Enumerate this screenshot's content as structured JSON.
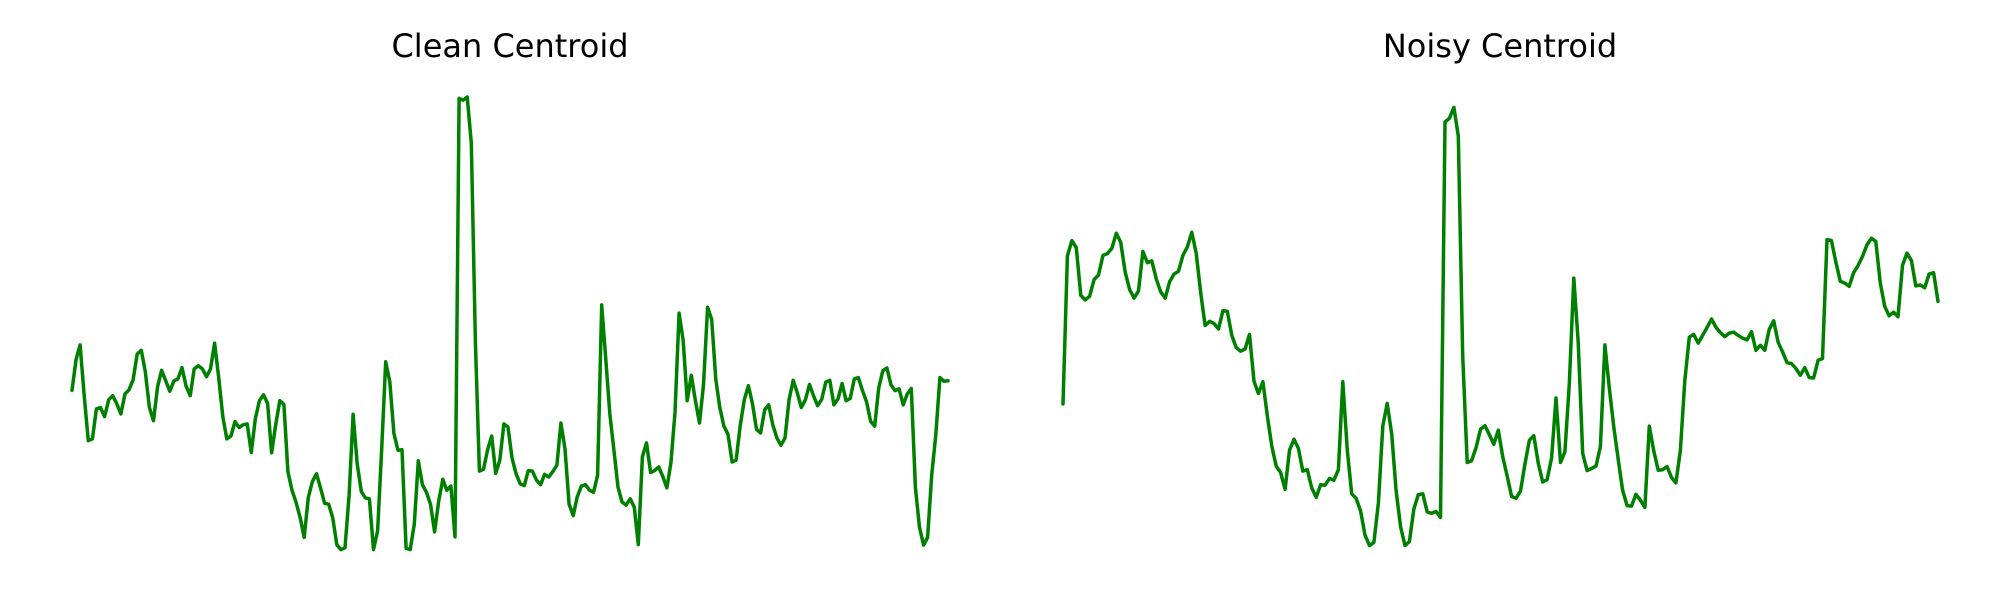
{
  "chart_data": [
    {
      "type": "line",
      "title": "Clean Centroid",
      "xlabel": "",
      "ylabel": "",
      "grid": false,
      "axes_visible": false,
      "ylim": [
        0,
        100
      ],
      "series": [
        {
          "color": "#008000",
          "values": [
            35.4,
            42.2,
            45.4,
            34.2,
            24.3,
            24.7,
            31.3,
            31.6,
            29.6,
            33.3,
            34.2,
            32.4,
            30.2,
            34.6,
            35.5,
            37.7,
            43.4,
            44.2,
            39.5,
            31.6,
            28.7,
            36.2,
            39.8,
            37.5,
            35.2,
            37.5,
            37.9,
            40.4,
            36.3,
            34.2,
            40.1,
            40.8,
            40.1,
            38.4,
            40.1,
            45.8,
            38.2,
            29.6,
            24.7,
            25.3,
            28.5,
            27.2,
            27.8,
            28.0,
            21.7,
            29.1,
            33.1,
            34.4,
            32.5,
            21.6,
            27.8,
            33.1,
            32.3,
            17.5,
            13.4,
            10.7,
            7.3,
            3.0,
            11.8,
            15.3,
            17.0,
            13.9,
            10.5,
            10.3,
            7.2,
            1.4,
            0.3,
            0.7,
            12.3,
            30.1,
            19.2,
            13.1,
            11.7,
            11.5,
            0.3,
            4.4,
            22.5,
            41.7,
            37.3,
            25.9,
            22.2,
            22.3,
            0.6,
            0.3,
            5.9,
            19.9,
            14.6,
            12.9,
            10.3,
            4.2,
            11.0,
            15.8,
            13.4,
            14.3,
            3.1,
            99.7,
            99.3,
            100.0,
            89.9,
            46.0,
            17.6,
            18.0,
            22.3,
            25.3,
            17.1,
            20.0,
            28.0,
            27.3,
            20.5,
            17.0,
            14.8,
            14.4,
            17.7,
            17.6,
            15.6,
            14.6,
            16.9,
            16.3,
            17.5,
            18.9,
            28.2,
            22.5,
            10.3,
            7.8,
            11.9,
            14.3,
            14.6,
            13.4,
            12.9,
            16.7,
            54.2,
            42.5,
            30.3,
            22.2,
            14.1,
            10.8,
            10.1,
            11.5,
            9.6,
            1.4,
            20.8,
            23.8,
            17.3,
            17.7,
            18.5,
            16.4,
            13.9,
            19.4,
            30.5,
            52.4,
            46.3,
            33.1,
            38.7,
            33.1,
            28.2,
            36.6,
            53.7,
            51.0,
            37.8,
            31.6,
            27.5,
            25.7,
            19.6,
            20.0,
            27.6,
            33.3,
            36.4,
            32.5,
            26.8,
            26.0,
            31.1,
            32.2,
            27.8,
            24.9,
            23.3,
            24.9,
            33.4,
            37.6,
            34.9,
            31.6,
            33.3,
            36.7,
            34.2,
            32.0,
            33.4,
            37.2,
            37.6,
            32.2,
            33.5,
            36.9,
            33.1,
            33.6,
            37.9,
            38.2,
            35.4,
            32.9,
            28.6,
            27.5,
            35.9,
            39.7,
            40.3,
            36.6,
            35.3,
            35.7,
            32.2,
            34.6,
            35.8,
            14.0,
            5.2,
            1.3,
            3.0,
            16.7,
            25.6,
            38.2,
            37.4,
            37.5
          ]
        }
      ]
    },
    {
      "type": "line",
      "title": "Noisy Centroid",
      "xlabel": "",
      "ylabel": "",
      "grid": false,
      "axes_visible": false,
      "ylim": [
        0,
        100
      ],
      "series": [
        {
          "color": "#008000",
          "values": [
            32.4,
            65.0,
            68.4,
            66.8,
            56.3,
            55.3,
            56.1,
            59.8,
            60.8,
            65.1,
            65.5,
            66.7,
            70.0,
            68.0,
            61.4,
            57.6,
            55.7,
            57.3,
            66.0,
            63.5,
            63.9,
            59.9,
            57.1,
            55.7,
            59.3,
            61.0,
            61.6,
            65.1,
            67.0,
            70.2,
            65.6,
            56.9,
            49.7,
            50.6,
            50.1,
            48.9,
            52.9,
            52.8,
            47.5,
            44.8,
            44.0,
            44.5,
            47.7,
            37.4,
            34.7,
            37.3,
            29.8,
            23.1,
            18.7,
            17.3,
            13.6,
            22.2,
            24.6,
            22.6,
            17.6,
            17.9,
            13.9,
            11.8,
            14.6,
            14.5,
            16.0,
            15.6,
            17.9,
            37.3,
            22.2,
            12.6,
            11.6,
            8.8,
            3.5,
            1.2,
            1.9,
            10.6,
            27.5,
            32.5,
            25.8,
            13.3,
            5.3,
            1.2,
            2.1,
            9.3,
            12.4,
            12.6,
            8.6,
            8.3,
            8.7,
            7.4,
            94.5,
            95.3,
            97.7,
            91.4,
            43.0,
            19.5,
            19.9,
            22.8,
            26.8,
            27.6,
            25.6,
            23.5,
            26.6,
            20.8,
            16.5,
            12.0,
            11.6,
            13.2,
            19.1,
            24.4,
            25.4,
            19.3,
            15.2,
            15.7,
            20.5,
            33.7,
            19.5,
            21.8,
            36.8,
            60.1,
            46.0,
            21.5,
            17.7,
            18.2,
            18.7,
            23.0,
            45.4,
            35.9,
            27.3,
            20.2,
            13.4,
            10.0,
            9.9,
            12.5,
            11.2,
            9.6,
            27.5,
            22.1,
            17.8,
            17.9,
            18.6,
            16.2,
            15.0,
            22.2,
            37.5,
            47.1,
            47.7,
            45.8,
            47.5,
            49.2,
            51.1,
            49.3,
            48.1,
            47.2,
            48.0,
            48.2,
            47.5,
            46.9,
            46.5,
            48.3,
            44.2,
            45.3,
            44.2,
            48.8,
            50.7,
            46.0,
            43.9,
            41.5,
            41.3,
            40.2,
            38.7,
            40.4,
            38.2,
            38.1,
            42.0,
            42.4,
            68.6,
            68.4,
            63.7,
            59.4,
            59.0,
            58.3,
            61.3,
            62.9,
            64.9,
            67.4,
            68.9,
            68.2,
            59.0,
            53.9,
            51.8,
            52.6,
            51.6,
            62.9,
            65.6,
            64.0,
            58.4,
            58.6,
            58.0,
            61.0,
            61.3,
            55.0
          ]
        }
      ]
    }
  ]
}
